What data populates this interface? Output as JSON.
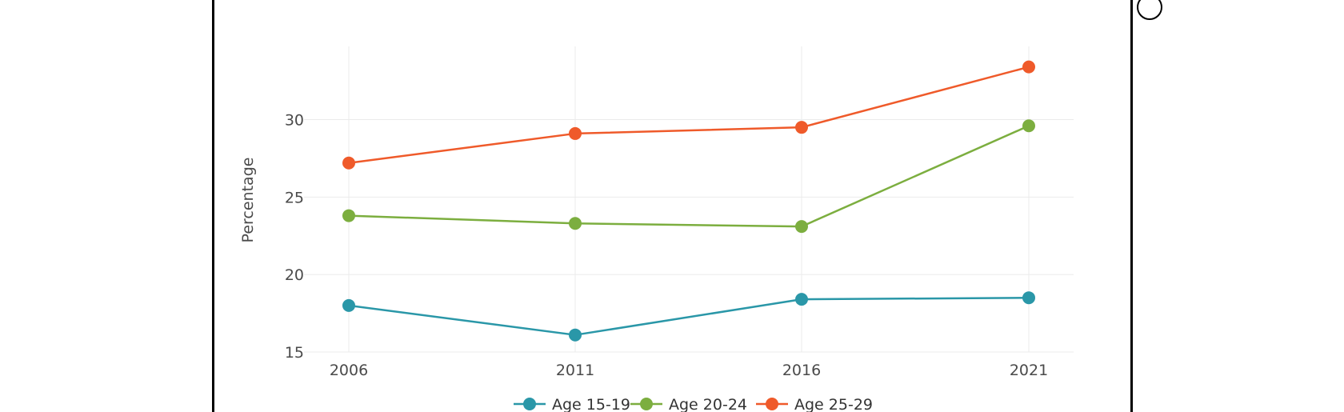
{
  "chart_data": {
    "type": "line",
    "title": "",
    "xlabel": "",
    "ylabel": "Percentage",
    "categories": [
      "2006",
      "2011",
      "2016",
      "2021"
    ],
    "ylim": [
      15,
      35
    ],
    "yticks": [
      15,
      20,
      25,
      30
    ],
    "grid": true,
    "legend_position": "bottom",
    "series": [
      {
        "name": "Age 15-19",
        "color": "#2a97a8",
        "values": [
          18.0,
          16.1,
          18.4,
          18.5
        ]
      },
      {
        "name": "Age 20-24",
        "color": "#7cae3f",
        "values": [
          23.8,
          23.3,
          23.1,
          29.6
        ]
      },
      {
        "name": "Age 25-29",
        "color": "#ef5a2a",
        "values": [
          27.2,
          29.1,
          29.5,
          33.4
        ]
      }
    ]
  },
  "colors": {
    "frame": "#000000",
    "grid": "#ebebeb",
    "text": "#4a4a4a"
  },
  "icons": {
    "corner": "circle-outline-icon"
  }
}
